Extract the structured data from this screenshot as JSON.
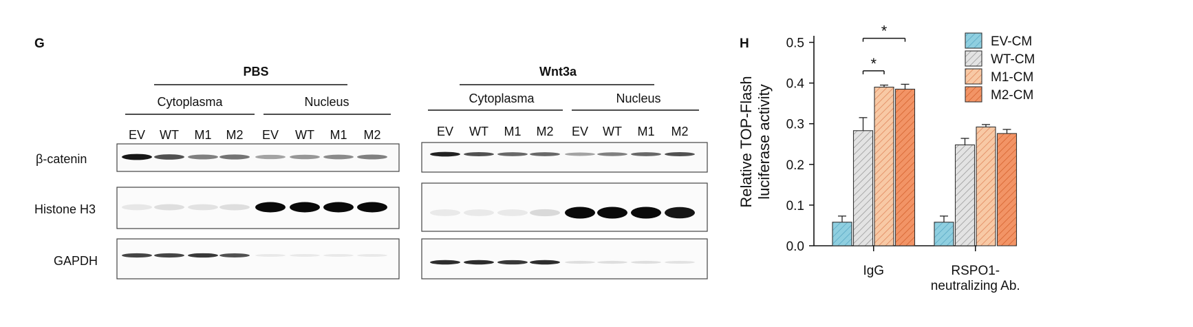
{
  "panel_g": {
    "letter": "G",
    "row_labels": [
      "β-catenin",
      "Histone H3",
      "GAPDH"
    ],
    "blocks": [
      {
        "treatment": "PBS",
        "fractions": [
          "Cytoplasma",
          "Nucleus"
        ],
        "lanes": [
          "EV",
          "WT",
          "M1",
          "M2",
          "EV",
          "WT",
          "M1",
          "M2"
        ],
        "band_intensity": {
          "beta_catenin": [
            0.95,
            0.7,
            0.5,
            0.55,
            0.35,
            0.4,
            0.45,
            0.5
          ],
          "histone_h3": [
            0.06,
            0.1,
            0.08,
            0.1,
            1.0,
            1.0,
            1.0,
            1.0
          ],
          "gapdh": [
            0.75,
            0.75,
            0.8,
            0.7,
            0.05,
            0.05,
            0.05,
            0.05
          ]
        }
      },
      {
        "treatment": "Wnt3a",
        "fractions": [
          "Cytoplasma",
          "Nucleus"
        ],
        "lanes": [
          "EV",
          "WT",
          "M1",
          "M2",
          "EV",
          "WT",
          "M1",
          "M2"
        ],
        "band_intensity": {
          "beta_catenin": [
            0.9,
            0.7,
            0.6,
            0.6,
            0.35,
            0.5,
            0.6,
            0.7
          ],
          "histone_h3": [
            0.05,
            0.05,
            0.05,
            0.12,
            1.0,
            1.0,
            1.0,
            0.95
          ],
          "gapdh": [
            0.85,
            0.85,
            0.8,
            0.85,
            0.1,
            0.1,
            0.1,
            0.08
          ]
        }
      }
    ]
  },
  "chart_data": {
    "type": "bar",
    "panel_letter": "H",
    "ylabel": "Relative TOP-Flash luciferase activity",
    "ylabel_lines": [
      "Relative TOP-Flash",
      "luciferase activity"
    ],
    "xlabel": "",
    "ylim": [
      0,
      0.55
    ],
    "yticks": [
      "0.0",
      "0.1",
      "0.2",
      "0.3",
      "0.4",
      "0.5"
    ],
    "categories": [
      "IgG",
      "RSPO1-neutralizing Ab."
    ],
    "category_lines": [
      [
        "IgG"
      ],
      [
        "RSPO1-",
        "neutralizing Ab."
      ]
    ],
    "legend_position": "top-right",
    "grid": false,
    "series": [
      {
        "name": "EV-CM",
        "values": [
          0.058,
          0.058
        ],
        "errors": [
          0.015,
          0.015
        ],
        "color": "#8fcfe0",
        "hatch": "#5aa8c4"
      },
      {
        "name": "WT-CM",
        "values": [
          0.283,
          0.248
        ],
        "errors": [
          0.032,
          0.016
        ],
        "color": "#e3e3e3",
        "hatch": "#9a9a9a"
      },
      {
        "name": "M1-CM",
        "values": [
          0.39,
          0.292
        ],
        "errors": [
          0.005,
          0.006
        ],
        "color": "#f8c9a5",
        "hatch": "#e0875c"
      },
      {
        "name": "M2-CM",
        "values": [
          0.385,
          0.276
        ],
        "errors": [
          0.012,
          0.01
        ],
        "color": "#f29466",
        "hatch": "#d4622e"
      }
    ],
    "annotations": [
      {
        "text": "*",
        "category": "IgG",
        "from_series": "WT-CM",
        "to_series": "M1-CM",
        "y": 0.43
      },
      {
        "text": "*",
        "category": "IgG",
        "from_series": "WT-CM",
        "to_series": "M2-CM",
        "y": 0.51
      }
    ]
  }
}
